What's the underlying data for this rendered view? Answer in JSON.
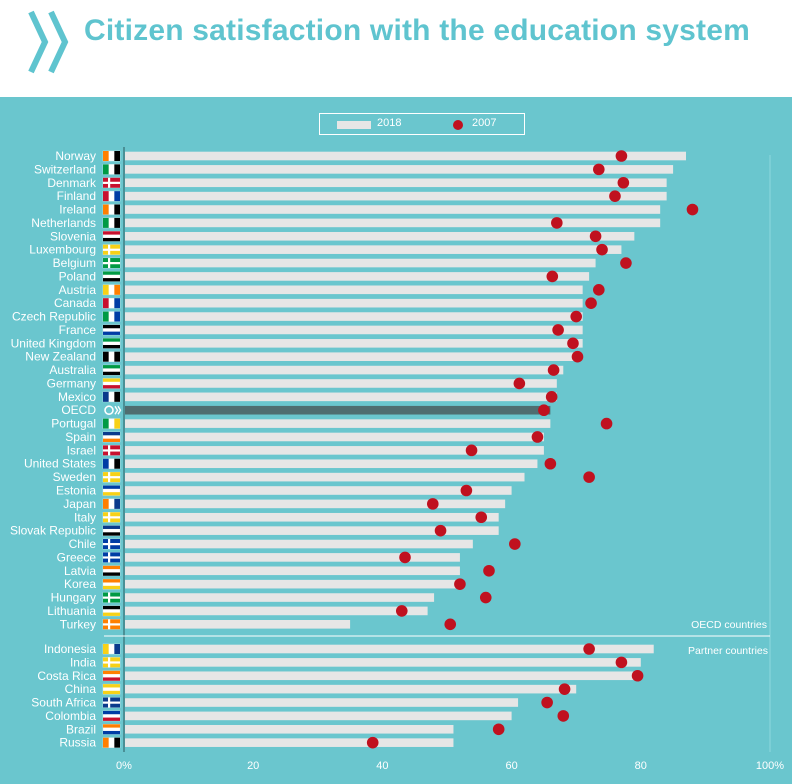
{
  "header": {
    "title": "Citizen satisfaction with the education system"
  },
  "legend": {
    "series_2018": "2018",
    "series_2007": "2007"
  },
  "colors": {
    "title": "#5fc4cf",
    "background": "#6ac6ce",
    "bar": "#e6e6e6",
    "bar_highlight": "#4f6d70",
    "dot": "#c0111f",
    "text": "#ffffff"
  },
  "group_labels": {
    "oecd": "OECD countries",
    "partner": "Partner countries"
  },
  "chart_data": {
    "type": "bar",
    "orientation": "horizontal",
    "title": "Citizen satisfaction with the education system",
    "x_ticks": [
      "0%",
      "20",
      "40",
      "60",
      "80",
      "100%"
    ],
    "xlim": [
      0,
      100
    ],
    "highlight": "OECD",
    "series": [
      {
        "name": "2018",
        "kind": "bar"
      },
      {
        "name": "2007",
        "kind": "dot"
      }
    ],
    "oecd": [
      {
        "country": "Norway",
        "v2018": 87,
        "v2007": 77
      },
      {
        "country": "Switzerland",
        "v2018": 85,
        "v2007": 73.5
      },
      {
        "country": "Denmark",
        "v2018": 84,
        "v2007": 77.3
      },
      {
        "country": "Finland",
        "v2018": 84,
        "v2007": 76
      },
      {
        "country": "Ireland",
        "v2018": 83,
        "v2007": 88
      },
      {
        "country": "Netherlands",
        "v2018": 83,
        "v2007": 67
      },
      {
        "country": "Slovenia",
        "v2018": 79,
        "v2007": 73
      },
      {
        "country": "Luxembourg",
        "v2018": 77,
        "v2007": 74
      },
      {
        "country": "Belgium",
        "v2018": 73,
        "v2007": 77.7
      },
      {
        "country": "Poland",
        "v2018": 72,
        "v2007": 66.3
      },
      {
        "country": "Austria",
        "v2018": 71,
        "v2007": 73.5
      },
      {
        "country": "Canada",
        "v2018": 71,
        "v2007": 72.3
      },
      {
        "country": "Czech Republic",
        "v2018": 71,
        "v2007": 70
      },
      {
        "country": "France",
        "v2018": 71,
        "v2007": 67.2
      },
      {
        "country": "United Kingdom",
        "v2018": 71,
        "v2007": 69.5
      },
      {
        "country": "New Zealand",
        "v2018": 70,
        "v2007": 70.2
      },
      {
        "country": "Australia",
        "v2018": 68,
        "v2007": 66.5
      },
      {
        "country": "Germany",
        "v2018": 67,
        "v2007": 61.2
      },
      {
        "country": "Mexico",
        "v2018": 67,
        "v2007": 66.2
      },
      {
        "country": "OECD",
        "v2018": 66,
        "v2007": 65
      },
      {
        "country": "Portugal",
        "v2018": 66,
        "v2007": 74.7
      },
      {
        "country": "Spain",
        "v2018": 65,
        "v2007": 64
      },
      {
        "country": "Israel",
        "v2018": 65,
        "v2007": 53.8
      },
      {
        "country": "United States",
        "v2018": 64,
        "v2007": 66
      },
      {
        "country": "Sweden",
        "v2018": 62,
        "v2007": 72
      },
      {
        "country": "Estonia",
        "v2018": 60,
        "v2007": 53
      },
      {
        "country": "Japan",
        "v2018": 59,
        "v2007": 47.8
      },
      {
        "country": "Italy",
        "v2018": 58,
        "v2007": 55.3
      },
      {
        "country": "Slovak Republic",
        "v2018": 58,
        "v2007": 49
      },
      {
        "country": "Chile",
        "v2018": 54,
        "v2007": 60.5
      },
      {
        "country": "Greece",
        "v2018": 52,
        "v2007": 43.5
      },
      {
        "country": "Latvia",
        "v2018": 52,
        "v2007": 56.5
      },
      {
        "country": "Korea",
        "v2018": 52,
        "v2007": 52
      },
      {
        "country": "Hungary",
        "v2018": 48,
        "v2007": 56
      },
      {
        "country": "Lithuania",
        "v2018": 47,
        "v2007": 43
      },
      {
        "country": "Turkey",
        "v2018": 35,
        "v2007": 50.5
      }
    ],
    "partner": [
      {
        "country": "Indonesia",
        "v2018": 82,
        "v2007": 72
      },
      {
        "country": "India",
        "v2018": 80,
        "v2007": 77
      },
      {
        "country": "Costa Rica",
        "v2018": 80,
        "v2007": 79.5
      },
      {
        "country": "China",
        "v2018": 70,
        "v2007": 68.2
      },
      {
        "country": "South Africa",
        "v2018": 61,
        "v2007": 65.5
      },
      {
        "country": "Colombia",
        "v2018": 60,
        "v2007": 68
      },
      {
        "country": "Brazil",
        "v2018": 51,
        "v2007": 58
      },
      {
        "country": "Russia",
        "v2018": 51,
        "v2007": 38.5
      }
    ]
  }
}
